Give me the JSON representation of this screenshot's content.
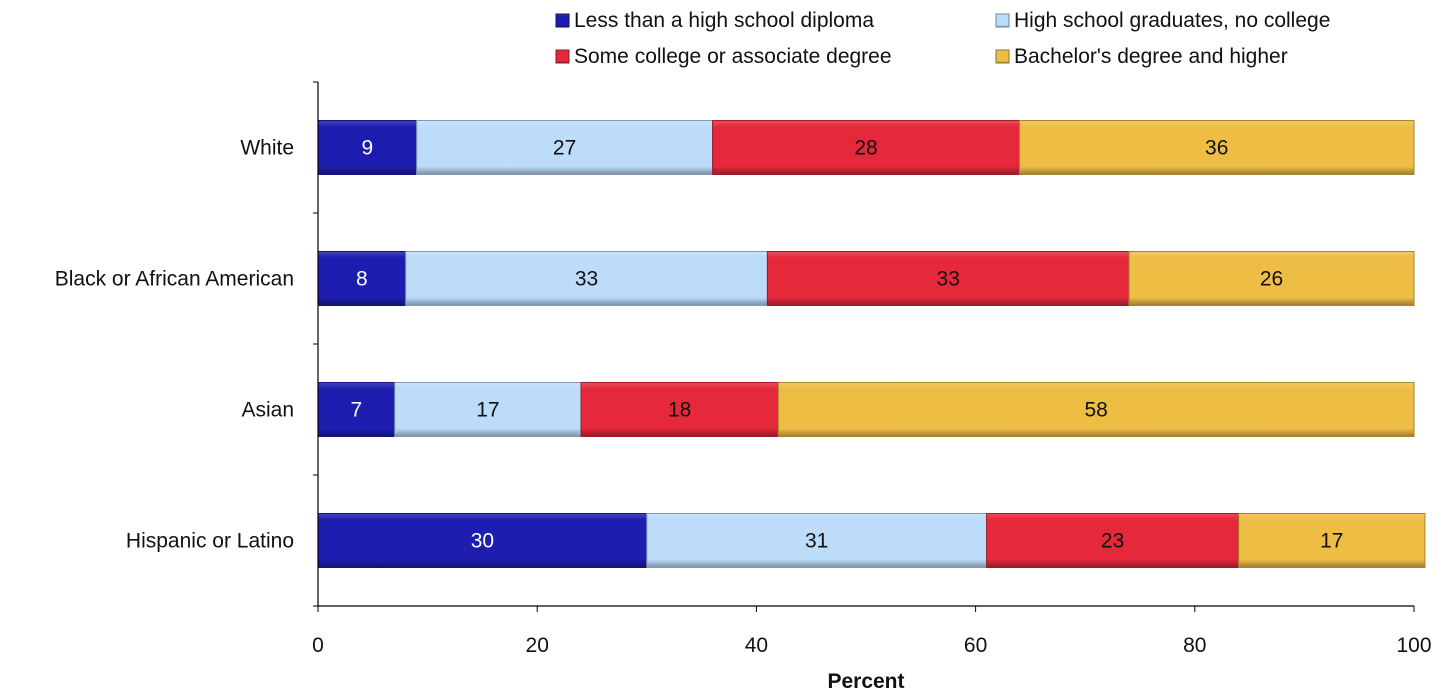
{
  "chart_data": {
    "type": "bar",
    "orientation": "horizontal",
    "stacked": true,
    "title": "",
    "xlabel": "Percent",
    "ylabel": "",
    "xlim": [
      0,
      100
    ],
    "xticks": [
      0,
      20,
      40,
      60,
      80,
      100
    ],
    "grid": false,
    "legend_position": "top",
    "categories": [
      "White",
      "Black or African American",
      "Asian",
      "Hispanic or Latino"
    ],
    "series": [
      {
        "name": "Less than a high school diploma",
        "color": "#1d1db0",
        "label_color": "#ffffff",
        "values": [
          9,
          8,
          7,
          30
        ]
      },
      {
        "name": "High school graduates, no college",
        "color": "#bcdcfa",
        "label_color": "#111111",
        "values": [
          27,
          33,
          17,
          31
        ]
      },
      {
        "name": "Some college or associate degree",
        "color": "#e5283a",
        "label_color": "#111111",
        "values": [
          28,
          33,
          18,
          23
        ]
      },
      {
        "name": "Bachelor's degree and higher",
        "color": "#eebe44",
        "label_color": "#111111",
        "values": [
          36,
          26,
          58,
          17
        ]
      }
    ]
  }
}
